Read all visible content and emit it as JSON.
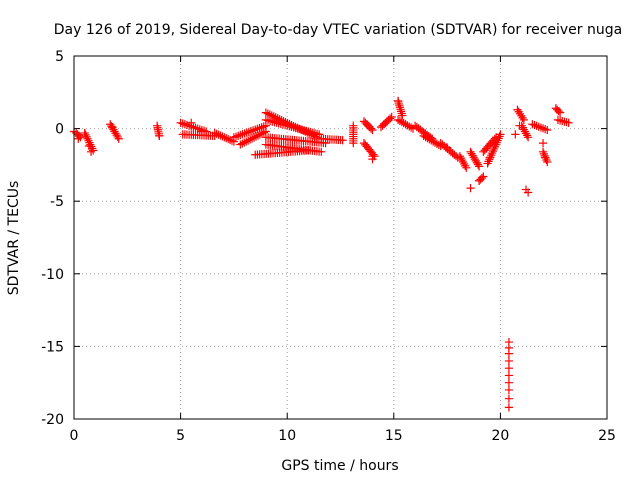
{
  "chart_data": {
    "type": "scatter",
    "title": "Day 126 of 2019, Sidereal Day-to-day VTEC variation (SDTVAR) for receiver nuga",
    "xlabel": "GPS time / hours",
    "ylabel": "SDTVAR / TECUs",
    "xlim": [
      0,
      25
    ],
    "ylim": [
      -20,
      5
    ],
    "xticks": [
      0,
      5,
      10,
      15,
      20,
      25
    ],
    "yticks": [
      5,
      0,
      -5,
      -10,
      -15,
      -20
    ],
    "grid": true,
    "marker": "+",
    "series": [
      {
        "name": "SDTVAR",
        "color": "#ff0000",
        "segments": [
          {
            "x0": 0.1,
            "x1": 0.3,
            "y0": -0.3,
            "y1": -0.6
          },
          {
            "x0": 0.5,
            "x1": 0.9,
            "y0": -0.3,
            "y1": -1.5
          },
          {
            "x0": 1.7,
            "x1": 2.1,
            "y0": 0.3,
            "y1": -0.7
          },
          {
            "x0": 3.9,
            "x1": 4.0,
            "y0": 0.2,
            "y1": -0.5
          },
          {
            "x0": 5.0,
            "x1": 6.2,
            "y0": 0.4,
            "y1": -0.2
          },
          {
            "x0": 5.1,
            "x1": 6.6,
            "y0": -0.4,
            "y1": -0.5
          },
          {
            "x0": 6.6,
            "x1": 7.5,
            "y0": -0.3,
            "y1": -0.9
          },
          {
            "x0": 7.5,
            "x1": 9.0,
            "y0": -0.6,
            "y1": 0.2
          },
          {
            "x0": 7.8,
            "x1": 9.0,
            "y0": -1.1,
            "y1": -0.2
          },
          {
            "x0": 9.0,
            "x1": 11.4,
            "y0": 1.1,
            "y1": -0.6
          },
          {
            "x0": 9.0,
            "x1": 11.5,
            "y0": 0.6,
            "y1": -0.4
          },
          {
            "x0": 9.0,
            "x1": 11.8,
            "y0": -0.6,
            "y1": -1.0
          },
          {
            "x0": 9.0,
            "x1": 11.6,
            "y0": -1.1,
            "y1": -1.6
          },
          {
            "x0": 8.5,
            "x1": 11.0,
            "y0": -1.8,
            "y1": -1.5
          },
          {
            "x0": 11.6,
            "x1": 12.6,
            "y0": -0.7,
            "y1": -0.8
          },
          {
            "x0": 13.1,
            "x1": 13.1,
            "y0": 0.2,
            "y1": -1.0
          },
          {
            "x0": 13.6,
            "x1": 14.0,
            "y0": 0.5,
            "y1": -0.1
          },
          {
            "x0": 13.6,
            "x1": 14.1,
            "y0": -1.0,
            "y1": -1.9
          },
          {
            "x0": 14.4,
            "x1": 14.9,
            "y0": 0.1,
            "y1": 0.8
          },
          {
            "x0": 15.2,
            "x1": 15.4,
            "y0": 1.9,
            "y1": 0.9
          },
          {
            "x0": 15.2,
            "x1": 15.9,
            "y0": 0.6,
            "y1": 0.0
          },
          {
            "x0": 16.0,
            "x1": 16.8,
            "y0": 0.2,
            "y1": -0.7
          },
          {
            "x0": 16.4,
            "x1": 17.2,
            "y0": -0.5,
            "y1": -1.2
          },
          {
            "x0": 17.2,
            "x1": 18.0,
            "y0": -1.0,
            "y1": -2.0
          },
          {
            "x0": 18.1,
            "x1": 18.4,
            "y0": -1.9,
            "y1": -2.7
          },
          {
            "x0": 18.6,
            "x1": 19.0,
            "y0": -1.6,
            "y1": -2.6
          },
          {
            "x0": 19.0,
            "x1": 19.2,
            "y0": -3.6,
            "y1": -3.3
          },
          {
            "x0": 19.4,
            "x1": 20.0,
            "y0": -2.4,
            "y1": -0.4
          },
          {
            "x0": 19.2,
            "x1": 19.8,
            "y0": -1.6,
            "y1": -0.6
          },
          {
            "x0": 20.8,
            "x1": 21.1,
            "y0": 1.3,
            "y1": 0.6
          },
          {
            "x0": 21.0,
            "x1": 21.3,
            "y0": 0.2,
            "y1": -0.6
          },
          {
            "x0": 21.5,
            "x1": 22.2,
            "y0": 0.3,
            "y1": -0.1
          },
          {
            "x0": 22.0,
            "x1": 22.2,
            "y0": -1.6,
            "y1": -2.3
          },
          {
            "x0": 22.6,
            "x1": 22.8,
            "y0": 1.4,
            "y1": 1.1
          },
          {
            "x0": 22.7,
            "x1": 23.2,
            "y0": 0.6,
            "y1": 0.4
          }
        ],
        "points": [
          {
            "x": 0.0,
            "y": -0.2
          },
          {
            "x": 0.2,
            "y": -0.7
          },
          {
            "x": 0.7,
            "y": -1.2
          },
          {
            "x": 0.8,
            "y": -1.6
          },
          {
            "x": 1.8,
            "y": 0.1
          },
          {
            "x": 4.0,
            "y": -0.5
          },
          {
            "x": 5.5,
            "y": 0.4
          },
          {
            "x": 6.0,
            "y": -0.2
          },
          {
            "x": 14.0,
            "y": -1.9
          },
          {
            "x": 14.0,
            "y": -2.1
          },
          {
            "x": 15.2,
            "y": 1.9
          },
          {
            "x": 17.5,
            "y": -1.3
          },
          {
            "x": 18.6,
            "y": -4.1
          },
          {
            "x": 19.0,
            "y": -3.6
          },
          {
            "x": 19.5,
            "y": -2.0
          },
          {
            "x": 20.7,
            "y": -0.4
          },
          {
            "x": 20.9,
            "y": 0.2
          },
          {
            "x": 21.2,
            "y": -4.2
          },
          {
            "x": 21.3,
            "y": -4.4
          },
          {
            "x": 22.0,
            "y": -1.0
          },
          {
            "x": 22.1,
            "y": -2.0
          },
          {
            "x": 20.4,
            "y": -14.7
          },
          {
            "x": 20.4,
            "y": -15.1
          },
          {
            "x": 20.4,
            "y": -15.5
          },
          {
            "x": 20.4,
            "y": -16.0
          },
          {
            "x": 20.4,
            "y": -16.5
          },
          {
            "x": 20.4,
            "y": -17.0
          },
          {
            "x": 20.4,
            "y": -17.5
          },
          {
            "x": 20.4,
            "y": -18.0
          },
          {
            "x": 20.4,
            "y": -18.6
          },
          {
            "x": 20.4,
            "y": -19.2
          }
        ]
      }
    ]
  }
}
